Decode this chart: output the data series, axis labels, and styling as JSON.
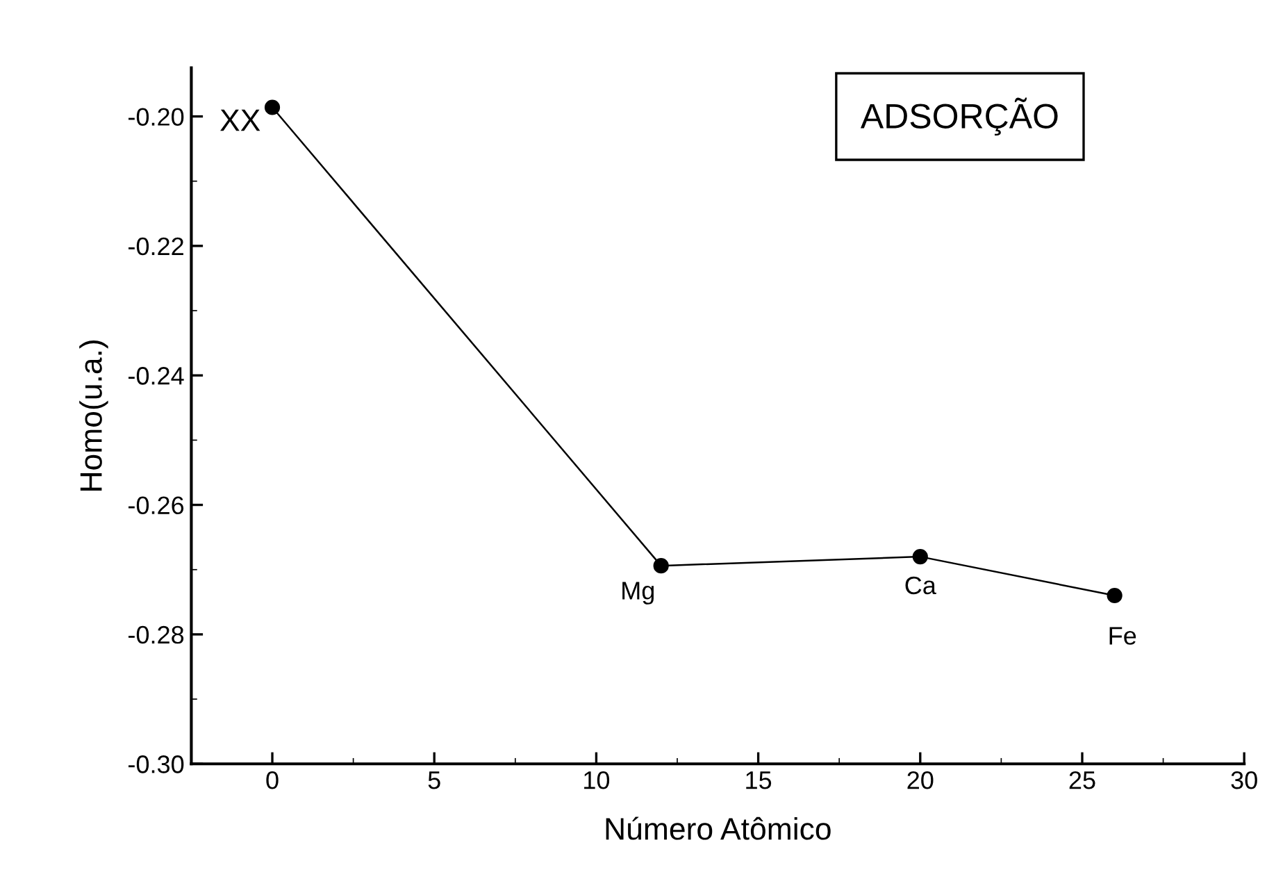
{
  "chart_data": {
    "type": "line",
    "xlabel": "Número Atômico",
    "ylabel": "Homo(u.a.)",
    "x": [
      0,
      12,
      20,
      26
    ],
    "series": [
      {
        "color": "#000000",
        "values": [
          -0.1986,
          -0.2694,
          -0.268,
          -0.274
        ]
      }
    ],
    "marker": "circle",
    "line_style": "solid",
    "xlim": [
      -2.5,
      30
    ],
    "xticks": [
      0,
      5,
      10,
      15,
      20,
      25,
      30
    ],
    "ylim": [
      -0.3,
      -0.1925
    ],
    "yticks": [
      {
        "value": -0.3,
        "label": "-0.30"
      },
      {
        "value": -0.28,
        "label": "-0.28"
      },
      {
        "value": -0.26,
        "label": "-0.26"
      },
      {
        "value": -0.24,
        "label": "-0.24"
      },
      {
        "value": -0.22,
        "label": "-0.22"
      },
      {
        "value": -0.2,
        "label": "-0.20"
      }
    ],
    "grid": false,
    "legend": false,
    "annotations": [
      "ADSORÇÃO",
      {
        "text": "XX",
        "x": 0,
        "y": -0.1986
      },
      {
        "text": "Mg",
        "x": 12,
        "y": -0.2694
      },
      {
        "text": "Ca",
        "x": 20,
        "y": -0.268
      },
      {
        "text": "Fe",
        "x": 26,
        "y": -0.274
      }
    ]
  }
}
